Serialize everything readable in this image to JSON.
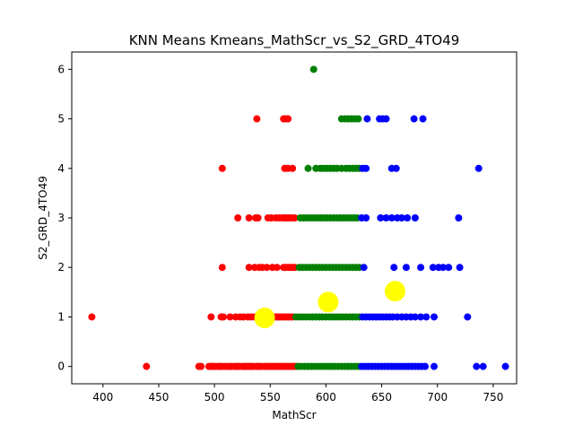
{
  "chart_data": {
    "type": "scatter",
    "title": "KNN Means Kmeans_MathScr_vs_S2_GRD_4TO49",
    "xlabel": "MathScr",
    "ylabel": "S2_GRD_4TO49",
    "xlim": [
      372,
      771
    ],
    "ylim": [
      -0.35,
      6.35
    ],
    "xticks": [
      400,
      450,
      500,
      550,
      600,
      650,
      700,
      750
    ],
    "yticks": [
      0,
      1,
      2,
      3,
      4,
      5,
      6
    ],
    "grid": false,
    "legend": "none",
    "colors": {
      "red": "#ff0000",
      "green": "#008000",
      "blue": "#0000ff",
      "centroid": "#ffff00"
    },
    "series": [
      {
        "color": "red",
        "points": [
          [
            439,
            0
          ],
          [
            486,
            0
          ],
          [
            488,
            0
          ],
          [
            495,
            0
          ],
          [
            497,
            0
          ],
          [
            498,
            0
          ],
          [
            500,
            0
          ],
          [
            503,
            0
          ],
          [
            505,
            0
          ],
          [
            507,
            0
          ],
          [
            510,
            0
          ],
          [
            513,
            0
          ],
          [
            515,
            0
          ],
          [
            518,
            0
          ],
          [
            520,
            0
          ],
          [
            522,
            0
          ],
          [
            525,
            0
          ],
          [
            527,
            0
          ],
          [
            529,
            0
          ],
          [
            531,
            0
          ],
          [
            533,
            0
          ],
          [
            535,
            0
          ],
          [
            538,
            0
          ],
          [
            540,
            0
          ],
          [
            542,
            0
          ],
          [
            545,
            0
          ],
          [
            547,
            0
          ],
          [
            549,
            0
          ],
          [
            551,
            0
          ],
          [
            553,
            0
          ],
          [
            555,
            0
          ],
          [
            557,
            0
          ],
          [
            559,
            0
          ],
          [
            561,
            0
          ],
          [
            563,
            0
          ],
          [
            565,
            0
          ],
          [
            567,
            0
          ],
          [
            569,
            0
          ],
          [
            571,
            0
          ],
          [
            573,
            0
          ],
          [
            390,
            1
          ],
          [
            497,
            1
          ],
          [
            506,
            1
          ],
          [
            508,
            1
          ],
          [
            514,
            1
          ],
          [
            519,
            1
          ],
          [
            523,
            1
          ],
          [
            526,
            1
          ],
          [
            530,
            1
          ],
          [
            533,
            1
          ],
          [
            536,
            1
          ],
          [
            539,
            1
          ],
          [
            541,
            1
          ],
          [
            543,
            1
          ],
          [
            548,
            1
          ],
          [
            551,
            1
          ],
          [
            554,
            1
          ],
          [
            556,
            1
          ],
          [
            558,
            1
          ],
          [
            560,
            1
          ],
          [
            562,
            1
          ],
          [
            564,
            1
          ],
          [
            566,
            1
          ],
          [
            568,
            1
          ],
          [
            570,
            1
          ],
          [
            507,
            2
          ],
          [
            531,
            2
          ],
          [
            536,
            2
          ],
          [
            540,
            2
          ],
          [
            543,
            2
          ],
          [
            547,
            2
          ],
          [
            552,
            2
          ],
          [
            556,
            2
          ],
          [
            562,
            2
          ],
          [
            564,
            2
          ],
          [
            566,
            2
          ],
          [
            568,
            2
          ],
          [
            570,
            2
          ],
          [
            572,
            2
          ],
          [
            521,
            3
          ],
          [
            531,
            3
          ],
          [
            537,
            3
          ],
          [
            539,
            3
          ],
          [
            548,
            3
          ],
          [
            551,
            3
          ],
          [
            555,
            3
          ],
          [
            558,
            3
          ],
          [
            561,
            3
          ],
          [
            563,
            3
          ],
          [
            565,
            3
          ],
          [
            567,
            3
          ],
          [
            569,
            3
          ],
          [
            572,
            3
          ],
          [
            507,
            4
          ],
          [
            563,
            4
          ],
          [
            566,
            4
          ],
          [
            570,
            4
          ],
          [
            538,
            5
          ],
          [
            562,
            5
          ],
          [
            564,
            5
          ],
          [
            566,
            5
          ]
        ]
      },
      {
        "color": "green",
        "points": [
          [
            575,
            0
          ],
          [
            578,
            0
          ],
          [
            581,
            0
          ],
          [
            584,
            0
          ],
          [
            587,
            0
          ],
          [
            590,
            0
          ],
          [
            593,
            0
          ],
          [
            596,
            0
          ],
          [
            599,
            0
          ],
          [
            602,
            0
          ],
          [
            605,
            0
          ],
          [
            608,
            0
          ],
          [
            611,
            0
          ],
          [
            614,
            0
          ],
          [
            617,
            0
          ],
          [
            620,
            0
          ],
          [
            623,
            0
          ],
          [
            626,
            0
          ],
          [
            629,
            0
          ],
          [
            573,
            1
          ],
          [
            576,
            1
          ],
          [
            579,
            1
          ],
          [
            582,
            1
          ],
          [
            585,
            1
          ],
          [
            588,
            1
          ],
          [
            591,
            1
          ],
          [
            594,
            1
          ],
          [
            597,
            1
          ],
          [
            600,
            1
          ],
          [
            603,
            1
          ],
          [
            606,
            1
          ],
          [
            609,
            1
          ],
          [
            612,
            1
          ],
          [
            615,
            1
          ],
          [
            618,
            1
          ],
          [
            621,
            1
          ],
          [
            624,
            1
          ],
          [
            627,
            1
          ],
          [
            630,
            1
          ],
          [
            576,
            2
          ],
          [
            579,
            2
          ],
          [
            582,
            2
          ],
          [
            585,
            2
          ],
          [
            588,
            2
          ],
          [
            591,
            2
          ],
          [
            594,
            2
          ],
          [
            597,
            2
          ],
          [
            600,
            2
          ],
          [
            603,
            2
          ],
          [
            606,
            2
          ],
          [
            609,
            2
          ],
          [
            612,
            2
          ],
          [
            615,
            2
          ],
          [
            618,
            2
          ],
          [
            621,
            2
          ],
          [
            624,
            2
          ],
          [
            627,
            2
          ],
          [
            630,
            2
          ],
          [
            577,
            3
          ],
          [
            580,
            3
          ],
          [
            583,
            3
          ],
          [
            586,
            3
          ],
          [
            589,
            3
          ],
          [
            592,
            3
          ],
          [
            595,
            3
          ],
          [
            598,
            3
          ],
          [
            601,
            3
          ],
          [
            604,
            3
          ],
          [
            607,
            3
          ],
          [
            610,
            3
          ],
          [
            613,
            3
          ],
          [
            616,
            3
          ],
          [
            619,
            3
          ],
          [
            622,
            3
          ],
          [
            625,
            3
          ],
          [
            628,
            3
          ],
          [
            584,
            4
          ],
          [
            591,
            4
          ],
          [
            595,
            4
          ],
          [
            598,
            4
          ],
          [
            601,
            4
          ],
          [
            604,
            4
          ],
          [
            607,
            4
          ],
          [
            610,
            4
          ],
          [
            614,
            4
          ],
          [
            618,
            4
          ],
          [
            621,
            4
          ],
          [
            624,
            4
          ],
          [
            627,
            4
          ],
          [
            630,
            4
          ],
          [
            614,
            5
          ],
          [
            617,
            5
          ],
          [
            620,
            5
          ],
          [
            623,
            5
          ],
          [
            626,
            5
          ],
          [
            629,
            5
          ],
          [
            589,
            6
          ]
        ]
      },
      {
        "color": "blue",
        "points": [
          [
            632,
            0
          ],
          [
            635,
            0
          ],
          [
            638,
            0
          ],
          [
            641,
            0
          ],
          [
            644,
            0
          ],
          [
            647,
            0
          ],
          [
            650,
            0
          ],
          [
            653,
            0
          ],
          [
            656,
            0
          ],
          [
            659,
            0
          ],
          [
            662,
            0
          ],
          [
            665,
            0
          ],
          [
            668,
            0
          ],
          [
            671,
            0
          ],
          [
            674,
            0
          ],
          [
            677,
            0
          ],
          [
            680,
            0
          ],
          [
            683,
            0
          ],
          [
            686,
            0
          ],
          [
            689,
            0
          ],
          [
            697,
            0
          ],
          [
            735,
            0
          ],
          [
            741,
            0
          ],
          [
            761,
            0
          ],
          [
            633,
            1
          ],
          [
            636,
            1
          ],
          [
            639,
            1
          ],
          [
            642,
            1
          ],
          [
            645,
            1
          ],
          [
            648,
            1
          ],
          [
            651,
            1
          ],
          [
            654,
            1
          ],
          [
            657,
            1
          ],
          [
            660,
            1
          ],
          [
            664,
            1
          ],
          [
            668,
            1
          ],
          [
            672,
            1
          ],
          [
            676,
            1
          ],
          [
            680,
            1
          ],
          [
            685,
            1
          ],
          [
            690,
            1
          ],
          [
            697,
            1
          ],
          [
            727,
            1
          ],
          [
            634,
            2
          ],
          [
            661,
            2
          ],
          [
            672,
            2
          ],
          [
            685,
            2
          ],
          [
            696,
            2
          ],
          [
            701,
            2
          ],
          [
            705,
            2
          ],
          [
            710,
            2
          ],
          [
            720,
            2
          ],
          [
            632,
            3
          ],
          [
            636,
            3
          ],
          [
            649,
            3
          ],
          [
            654,
            3
          ],
          [
            659,
            3
          ],
          [
            664,
            3
          ],
          [
            668,
            3
          ],
          [
            673,
            3
          ],
          [
            680,
            3
          ],
          [
            719,
            3
          ],
          [
            633,
            4
          ],
          [
            636,
            4
          ],
          [
            659,
            4
          ],
          [
            663,
            4
          ],
          [
            737,
            4
          ],
          [
            637,
            5
          ],
          [
            648,
            5
          ],
          [
            651,
            5
          ],
          [
            654,
            5
          ],
          [
            679,
            5
          ],
          [
            687,
            5
          ]
        ]
      },
      {
        "color": "centroid",
        "role": "centroid",
        "points": [
          [
            545,
            0.98
          ],
          [
            602,
            1.3
          ],
          [
            662,
            1.52
          ]
        ]
      }
    ]
  }
}
